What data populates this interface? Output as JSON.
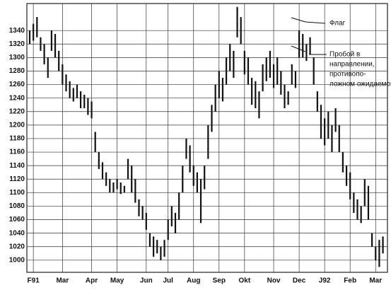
{
  "chart_data": {
    "type": "range_bar",
    "categories": [
      null,
      "F91",
      null,
      null,
      null,
      null,
      null,
      null,
      null,
      "Mar",
      null,
      null,
      null,
      null,
      null,
      null,
      null,
      "Apr",
      null,
      null,
      null,
      null,
      null,
      null,
      "May",
      null,
      null,
      null,
      null,
      null,
      null,
      null,
      "Jun",
      null,
      null,
      null,
      null,
      null,
      "Jul",
      null,
      null,
      null,
      null,
      null,
      null,
      "Aug",
      null,
      null,
      null,
      null,
      null,
      null,
      "Sep",
      null,
      null,
      null,
      null,
      null,
      null,
      "Okt",
      null,
      null,
      null,
      null,
      null,
      null,
      null,
      "Nov",
      null,
      null,
      null,
      null,
      null,
      null,
      "Dec",
      null,
      null,
      null,
      null,
      null,
      null,
      "J92",
      null,
      null,
      null,
      null,
      null,
      null,
      "Feb",
      null,
      null,
      null,
      null,
      null,
      null,
      "Mar",
      null,
      null
    ],
    "high": [
      1340,
      1350,
      1360,
      1330,
      1320,
      1300,
      1340,
      1335,
      1310,
      1290,
      1275,
      1265,
      1255,
      1260,
      1250,
      1245,
      1240,
      1235,
      1190,
      1160,
      1145,
      1130,
      1120,
      1115,
      1120,
      1115,
      1110,
      1150,
      1140,
      1120,
      1090,
      1080,
      1070,
      1040,
      1035,
      1030,
      1020,
      1030,
      1060,
      1080,
      1070,
      1100,
      1140,
      1180,
      1170,
      1140,
      1130,
      1120,
      1140,
      1200,
      1230,
      1260,
      1280,
      1270,
      1300,
      1320,
      1310,
      1375,
      1360,
      1310,
      1300,
      1270,
      1265,
      1250,
      1290,
      1300,
      1310,
      1290,
      1300,
      1280,
      1260,
      1250,
      1290,
      1280,
      1340,
      1335,
      1320,
      1330,
      1300,
      1250,
      1230,
      1210,
      1220,
      1200,
      1225,
      1200,
      1160,
      1140,
      1130,
      1100,
      1090,
      1080,
      1120,
      1110,
      1040,
      1020,
      1030,
      1035
    ],
    "low": [
      1320,
      1325,
      1330,
      1310,
      1290,
      1270,
      1310,
      1300,
      1280,
      1260,
      1250,
      1240,
      1235,
      1240,
      1225,
      1225,
      1215,
      1210,
      1160,
      1135,
      1120,
      1110,
      1100,
      1100,
      1105,
      1098,
      1100,
      1120,
      1100,
      1085,
      1065,
      1060,
      1045,
      1020,
      1005,
      1010,
      1000,
      1005,
      1030,
      1050,
      1040,
      1060,
      1100,
      1150,
      1130,
      1110,
      1100,
      1055,
      1105,
      1150,
      1190,
      1220,
      1240,
      1235,
      1260,
      1280,
      1270,
      1330,
      1320,
      1275,
      1260,
      1230,
      1225,
      1210,
      1250,
      1265,
      1270,
      1255,
      1260,
      1245,
      1225,
      1230,
      1260,
      1255,
      1300,
      1300,
      1295,
      1305,
      1260,
      1220,
      1180,
      1170,
      1180,
      1160,
      1190,
      1160,
      1130,
      1110,
      1090,
      1070,
      1060,
      1055,
      1080,
      1060,
      1020,
      1000,
      990,
      1010
    ],
    "color": "#111111",
    "ylim": [
      982,
      1380
    ],
    "yticks": [
      1000,
      1020,
      1040,
      1060,
      1080,
      1100,
      1120,
      1140,
      1160,
      1180,
      1200,
      1220,
      1240,
      1260,
      1280,
      1300,
      1320,
      1340
    ],
    "grid": true,
    "annotations": [
      {
        "lines": [
          "Флаг"
        ]
      },
      {
        "lines": [
          "Пробой в",
          "направлении,",
          "противопо-",
          "ложном ожидаемому"
        ]
      }
    ]
  }
}
